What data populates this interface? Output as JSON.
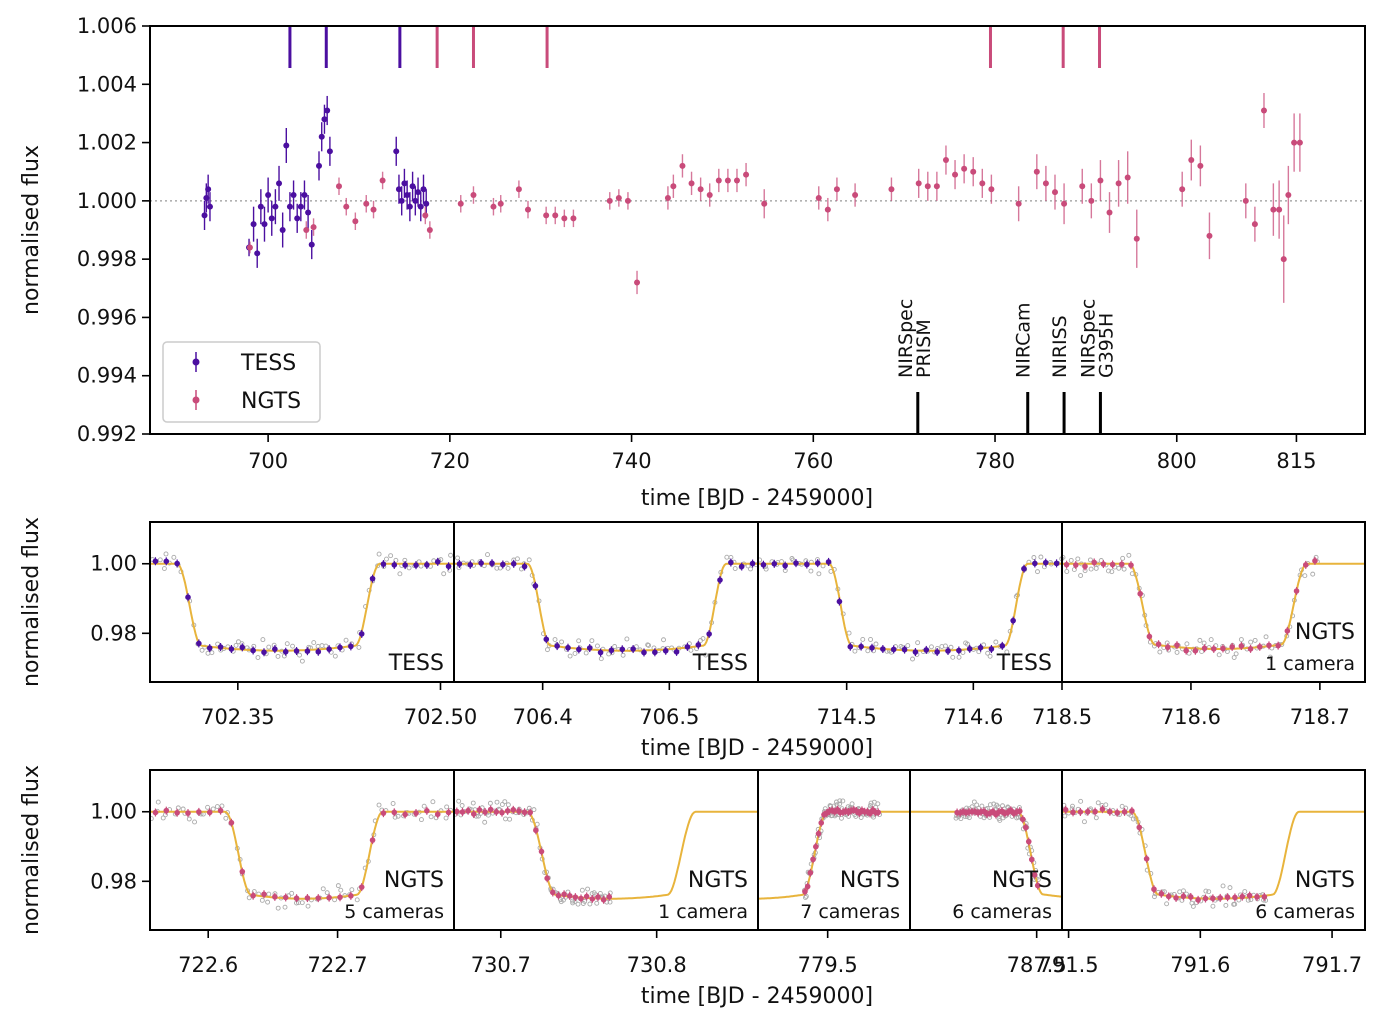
{
  "chart_data": [
    {
      "type": "scatter",
      "panel": "main",
      "xlabel": "time [BJD - 2459000]",
      "ylabel": "normalised flux",
      "xlim": [
        687,
        827
      ],
      "ylim": [
        0.992,
        1.006
      ],
      "x_axis": "broken: 687-810 linear, 810-827 compressed",
      "yticks": [
        "0.992",
        "0.994",
        "0.996",
        "0.998",
        "1.000",
        "1.002",
        "1.004",
        "1.006"
      ],
      "yticks_values": [
        0.992,
        0.994,
        0.996,
        0.998,
        1.0,
        1.002,
        1.004,
        1.006
      ],
      "xticks": [
        "700",
        "720",
        "740",
        "760",
        "780",
        "800",
        "815"
      ],
      "xticks_values": [
        700,
        720,
        740,
        760,
        780,
        800,
        815
      ],
      "reference_line": {
        "y": 1.0,
        "style": "dotted",
        "color": "#999999"
      },
      "legend": {
        "placement": "bottom-left",
        "entries": [
          "TESS",
          "NGTS"
        ]
      },
      "series": [
        {
          "name": "TESS",
          "color": "#4b0fa0",
          "x": [
            693.0,
            693.2,
            693.4,
            693.6,
            697.9,
            698.4,
            698.8,
            699.2,
            699.6,
            700.0,
            700.4,
            700.8,
            701.2,
            701.6,
            702.0,
            702.4,
            702.8,
            703.2,
            703.6,
            704.0,
            704.4,
            704.8,
            705.6,
            705.9,
            706.2,
            706.5,
            706.8,
            714.1,
            714.4,
            714.7,
            715.0,
            715.3,
            715.6,
            715.9,
            716.2,
            716.5,
            716.8,
            717.1,
            717.4
          ],
          "y": [
            0.9995,
            1.0001,
            1.0004,
            0.9998,
            0.9984,
            0.9992,
            0.9982,
            0.9998,
            0.9992,
            1.0002,
            0.9994,
            0.9998,
            1.0006,
            0.999,
            1.0019,
            0.9998,
            1.0002,
            0.9994,
            0.9998,
            1.0002,
            0.9996,
            0.9985,
            1.0012,
            1.0022,
            1.0028,
            1.0031,
            1.0017,
            1.0017,
            1.0004,
            1.0,
            1.0006,
            1.0002,
            0.9998,
            1.0005,
            1.0,
            1.0003,
            0.9998,
            1.0004,
            0.9999
          ],
          "yerr": [
            0.0005,
            0.0005,
            0.0005,
            0.0005,
            0.0003,
            0.0006,
            0.0005,
            0.0006,
            0.0006,
            0.0006,
            0.0006,
            0.0006,
            0.0006,
            0.0006,
            0.0006,
            0.0005,
            0.0005,
            0.0005,
            0.0005,
            0.0005,
            0.0006,
            0.0005,
            0.0005,
            0.0005,
            0.0005,
            0.0005,
            0.0005,
            0.0005,
            0.0005,
            0.0005,
            0.0005,
            0.0005,
            0.0005,
            0.0005,
            0.0005,
            0.0005,
            0.0005,
            0.0005,
            0.0005
          ]
        },
        {
          "name": "NGTS",
          "color": "#c94b7a",
          "x": [
            698.0,
            704.2,
            705.0,
            707.8,
            708.6,
            709.6,
            710.8,
            711.6,
            712.6,
            717.3,
            717.8,
            721.2,
            722.6,
            724.8,
            725.6,
            727.6,
            728.6,
            730.6,
            731.6,
            732.6,
            733.6,
            737.6,
            738.6,
            739.6,
            740.6,
            744.0,
            744.6,
            745.6,
            746.6,
            747.6,
            748.6,
            749.6,
            750.6,
            751.6,
            752.6,
            754.6,
            760.6,
            761.6,
            762.6,
            764.6,
            768.6,
            771.6,
            772.6,
            773.6,
            774.6,
            775.6,
            776.6,
            777.6,
            778.6,
            779.6,
            782.6,
            784.6,
            785.6,
            786.6,
            787.6,
            789.6,
            790.6,
            791.6,
            792.6,
            793.6,
            794.6,
            795.6,
            800.6,
            801.6,
            802.6,
            803.6,
            807.6,
            808.6,
            809.6,
            811.0,
            812.0,
            812.8,
            813.6,
            814.6,
            815.6
          ],
          "y": [
            0.9984,
            0.999,
            0.9991,
            1.0005,
            0.9998,
            0.9993,
            0.9999,
            0.9997,
            1.0007,
            0.9995,
            0.999,
            0.9999,
            1.0002,
            0.9998,
            0.9999,
            1.0004,
            0.9997,
            0.9995,
            0.9995,
            0.9994,
            0.9994,
            1.0,
            1.0001,
            1.0,
            0.9972,
            1.0001,
            1.0005,
            1.0012,
            1.0006,
            1.0004,
            1.0002,
            1.0007,
            1.0007,
            1.0007,
            1.0009,
            0.9999,
            1.0001,
            0.9997,
            1.0004,
            1.0002,
            1.0004,
            1.0006,
            1.0005,
            1.0005,
            1.0014,
            1.0009,
            1.0011,
            1.001,
            1.0006,
            1.0004,
            0.9999,
            1.001,
            1.0006,
            1.0003,
            0.9999,
            1.0005,
            1.0,
            1.0007,
            0.9996,
            1.0006,
            1.0008,
            0.9987,
            1.0004,
            1.0014,
            1.0012,
            0.9988,
            1.0,
            0.9992,
            1.0031,
            0.9997,
            0.9997,
            0.998,
            1.0002,
            1.002,
            1.002
          ],
          "yerr": [
            0.0002,
            0.0003,
            0.0003,
            0.0003,
            0.0003,
            0.0003,
            0.0003,
            0.0003,
            0.0003,
            0.0003,
            0.0003,
            0.0003,
            0.0003,
            0.0003,
            0.0003,
            0.0003,
            0.0003,
            0.0003,
            0.0003,
            0.0003,
            0.0003,
            0.0003,
            0.0003,
            0.0003,
            0.0004,
            0.0004,
            0.0004,
            0.0004,
            0.0004,
            0.0004,
            0.0004,
            0.0004,
            0.0004,
            0.0004,
            0.0004,
            0.0005,
            0.0004,
            0.0004,
            0.0004,
            0.0004,
            0.0004,
            0.0005,
            0.0005,
            0.0005,
            0.0005,
            0.0005,
            0.0005,
            0.0005,
            0.0005,
            0.0005,
            0.0006,
            0.0006,
            0.0006,
            0.0006,
            0.0007,
            0.0006,
            0.0006,
            0.0007,
            0.0007,
            0.0008,
            0.0009,
            0.001,
            0.0006,
            0.0007,
            0.0007,
            0.0008,
            0.0006,
            0.0006,
            0.0006,
            0.0009,
            0.001,
            0.0015,
            0.001,
            0.001,
            0.001
          ]
        }
      ],
      "transit_markers_top": [
        {
          "x": 702.4,
          "color": "#4b0fa0"
        },
        {
          "x": 706.4,
          "color": "#4b0fa0"
        },
        {
          "x": 714.5,
          "color": "#4b0fa0"
        },
        {
          "x": 718.6,
          "color": "#c94b7a"
        },
        {
          "x": 722.6,
          "color": "#c94b7a"
        },
        {
          "x": 730.7,
          "color": "#c94b7a"
        },
        {
          "x": 779.5,
          "color": "#c94b7a"
        },
        {
          "x": 787.5,
          "color": "#c94b7a"
        },
        {
          "x": 791.5,
          "color": "#c94b7a"
        }
      ],
      "jwst_markers": [
        {
          "x": 771.5,
          "label": [
            "NIRSpec",
            "PRISM"
          ]
        },
        {
          "x": 783.6,
          "label": [
            "NIRCam"
          ]
        },
        {
          "x": 787.6,
          "label": [
            "NIRISS"
          ]
        },
        {
          "x": 791.6,
          "label": [
            "NIRSpec",
            "G395H"
          ]
        }
      ]
    },
    {
      "type": "scatter",
      "panel": "transits-row-1",
      "xlabel": "time [BJD - 2459000]",
      "ylabel": "normalised flux",
      "ylim": [
        0.966,
        1.012
      ],
      "yticks": [
        "1.00",
        "0.98"
      ],
      "yticks_values": [
        1.0,
        0.98
      ],
      "subplots": [
        {
          "label": "TESS",
          "sublabel": "",
          "color": "#4b0fa0",
          "xlim": [
            702.285,
            702.51
          ],
          "xticks": [
            "702.35",
            "702.50"
          ],
          "xticks_values": [
            702.35,
            702.5
          ],
          "t_start": 702.305,
          "t_end": 702.455,
          "dur_ing": 0.018,
          "data_from": 0.0,
          "data_to": 1.0,
          "depth": 0.0225
        },
        {
          "label": "TESS",
          "sublabel": "",
          "color": "#4b0fa0",
          "xlim": [
            706.33,
            706.57
          ],
          "xticks": [
            "706.4",
            "706.5"
          ],
          "xticks_values": [
            706.4,
            706.5
          ],
          "t_start": 706.388,
          "t_end": 706.545,
          "dur_ing": 0.018,
          "data_from": 0.0,
          "data_to": 1.0,
          "depth": 0.0225
        },
        {
          "label": "TESS",
          "sublabel": "",
          "color": "#4b0fa0",
          "xlim": [
            714.43,
            714.67
          ],
          "xticks": [
            "714.5",
            "714.6"
          ],
          "xticks_values": [
            714.5,
            714.6
          ],
          "t_start": 714.486,
          "t_end": 714.643,
          "dur_ing": 0.018,
          "data_from": 0.0,
          "data_to": 1.0,
          "depth": 0.0225
        },
        {
          "label": "NGTS",
          "sublabel": "1 camera",
          "color": "#c94b7a",
          "xlim": [
            718.5,
            718.735
          ],
          "xticks": [
            "718.5",
            "718.6",
            "718.7"
          ],
          "xticks_values": [
            718.5,
            718.6,
            718.7
          ],
          "t_start": 718.552,
          "t_end": 718.69,
          "dur_ing": 0.02,
          "data_from": 0.0,
          "data_to": 0.85,
          "depth": 0.022
        }
      ]
    },
    {
      "type": "scatter",
      "panel": "transits-row-2",
      "xlabel": "time [BJD - 2459000]",
      "ylabel": "normalised flux",
      "ylim": [
        0.966,
        1.012
      ],
      "yticks": [
        "1.00",
        "0.98"
      ],
      "yticks_values": [
        1.0,
        0.98
      ],
      "subplots": [
        {
          "label": "NGTS",
          "sublabel": "5 cameras",
          "color": "#c94b7a",
          "xlim": [
            722.555,
            722.79
          ],
          "xticks": [
            "722.6",
            "722.7"
          ],
          "xticks_values": [
            722.6,
            722.7
          ],
          "t_start": 722.613,
          "t_end": 722.735,
          "dur_ing": 0.02,
          "data_from": 0.0,
          "data_to": 1.0,
          "depth": 0.0225
        },
        {
          "label": "NGTS",
          "sublabel": "1 camera",
          "color": "#c94b7a",
          "xlim": [
            730.67,
            730.865
          ],
          "xticks": [
            "730.7",
            "730.8"
          ],
          "xticks_values": [
            730.7,
            730.8
          ],
          "t_start": 730.717,
          "t_end": 730.825,
          "dur_ing": 0.018,
          "data_from": 0.0,
          "data_to": 0.52,
          "depth": 0.0225
        },
        {
          "label": "NGTS",
          "sublabel": "7 cameras",
          "color": "#c94b7a",
          "xlim": [
            779.445,
            779.565
          ],
          "xticks": [
            "779.5"
          ],
          "xticks_values": [
            779.5
          ],
          "t_start": 779.38,
          "t_end": 779.5,
          "dur_ing": 0.02,
          "data_from": 0.3,
          "data_to": 0.8,
          "depth": 0.0225
        },
        {
          "label": "NGTS",
          "sublabel": "6 cameras",
          "color": "#c94b7a",
          "xlim": [
            787.4,
            787.52
          ],
          "xticks": [
            "787.5"
          ],
          "xticks_values": [
            787.5
          ],
          "t_start": 787.485,
          "t_end": 787.62,
          "dur_ing": 0.02,
          "data_from": 0.3,
          "data_to": 0.85,
          "depth": 0.0225
        },
        {
          "label": "NGTS",
          "sublabel": "6 cameras",
          "color": "#c94b7a",
          "xlim": [
            791.495,
            791.725
          ],
          "xticks": [
            "791.5",
            "791.6",
            "791.7"
          ],
          "xticks_values": [
            791.5,
            791.6,
            791.7
          ],
          "t_start": 791.548,
          "t_end": 791.675,
          "dur_ing": 0.02,
          "data_from": 0.0,
          "data_to": 0.68,
          "depth": 0.0225
        }
      ]
    }
  ],
  "colors": {
    "tess": "#4b0fa0",
    "ngts": "#c94b7a",
    "model": "#e8b43c",
    "raw_points": "#aaaaaa",
    "marker_black": "#000000"
  }
}
